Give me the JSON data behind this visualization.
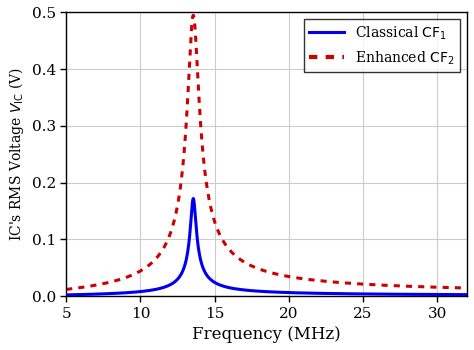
{
  "title": "",
  "xlabel": "Frequency (MHz)",
  "ylabel": "IC's RMS Voltage $V_{\\mathrm{IC}}$ (V)",
  "xlim": [
    5,
    32
  ],
  "ylim": [
    0,
    0.5
  ],
  "xticks": [
    5,
    10,
    15,
    20,
    25,
    30
  ],
  "yticks": [
    0.0,
    0.1,
    0.2,
    0.3,
    0.4,
    0.5
  ],
  "blue_peak_freq": 13.56,
  "blue_peak_amp": 0.172,
  "blue_Q": 35,
  "red_peak_freq": 13.56,
  "red_peak_amp": 0.495,
  "red_Q": 18,
  "blue_color": "#0000ee",
  "red_color": "#cc0000",
  "blue_linewidth": 2.2,
  "red_linewidth": 2.2,
  "legend_labels": [
    "Classical $\\mathrm{CF}_1$",
    "Enhanced $\\mathrm{CF}_2$"
  ],
  "grid_color": "#cccccc",
  "background_color": "#ffffff",
  "figsize": [
    4.74,
    3.5
  ],
  "dpi": 100
}
